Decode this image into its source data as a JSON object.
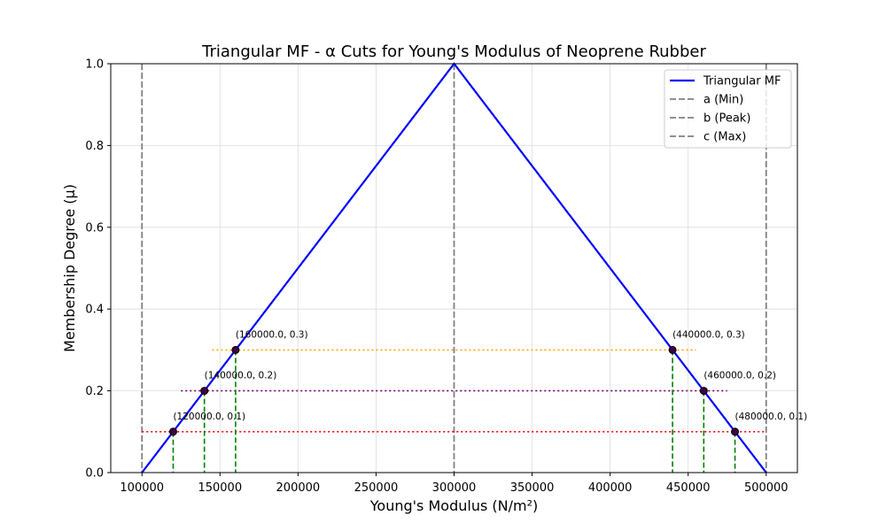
{
  "chart_data": {
    "type": "line",
    "title": "Triangular MF - α Cuts for Young's Modulus of Neoprene Rubber",
    "xlabel": "Young's Modulus (N/m²)",
    "ylabel": "Membership Degree (μ)",
    "xlim": [
      80000,
      520000
    ],
    "ylim": [
      0,
      1.0
    ],
    "x_ticks": [
      100000,
      150000,
      200000,
      250000,
      300000,
      350000,
      400000,
      450000,
      500000
    ],
    "x_tick_labels": [
      "100000",
      "150000",
      "200000",
      "250000",
      "300000",
      "350000",
      "400000",
      "450000",
      "500000"
    ],
    "y_ticks": [
      0,
      0.2,
      0.4,
      0.6,
      0.8,
      1.0
    ],
    "y_tick_labels": [
      "0.0",
      "0.2",
      "0.4",
      "0.6",
      "0.8",
      "1.0"
    ],
    "grid": true,
    "legend_position": "top-right",
    "series": [
      {
        "name": "Triangular MF",
        "color": "#0000ff",
        "style": "solid",
        "x": [
          100000,
          300000,
          500000
        ],
        "y": [
          0,
          1,
          0
        ]
      }
    ],
    "vertical_lines": [
      {
        "name": "a (Min)",
        "x": 100000,
        "color": "#808080",
        "style": "dashed"
      },
      {
        "name": "b (Peak)",
        "x": 300000,
        "color": "#808080",
        "style": "dashed"
      },
      {
        "name": "c (Max)",
        "x": 500000,
        "color": "#808080",
        "style": "dashed"
      }
    ],
    "alpha_cuts": [
      {
        "alpha": 0.1,
        "left": 120000,
        "right": 480000,
        "color": "#ff0000",
        "line_from": 100000,
        "line_to": 500000,
        "left_label": "(120000.0, 0.1)",
        "right_label": "(480000.0, 0.1)"
      },
      {
        "alpha": 0.2,
        "left": 140000,
        "right": 460000,
        "color": "#800080",
        "line_from": 125000,
        "line_to": 475000,
        "left_label": "(140000.0, 0.2)",
        "right_label": "(460000.0, 0.2)"
      },
      {
        "alpha": 0.3,
        "left": 160000,
        "right": 440000,
        "color": "#ffa500",
        "line_from": 145000,
        "line_to": 455000,
        "left_label": "(160000.0, 0.3)",
        "right_label": "(440000.0, 0.3)"
      }
    ],
    "drop_line_color": "#008000",
    "legend": [
      {
        "label": "Triangular MF",
        "color": "#0000ff",
        "style": "solid"
      },
      {
        "label": "a (Min)",
        "color": "#808080",
        "style": "dashed"
      },
      {
        "label": "b (Peak)",
        "color": "#808080",
        "style": "dashed"
      },
      {
        "label": "c (Max)",
        "color": "#808080",
        "style": "dashed"
      }
    ]
  }
}
